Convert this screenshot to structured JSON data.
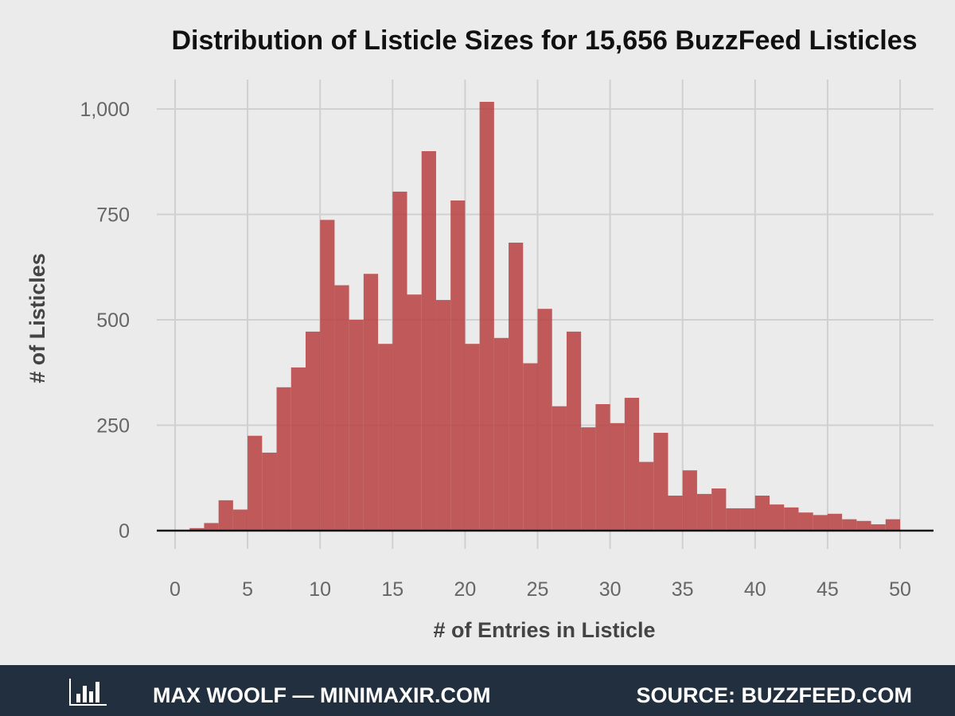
{
  "chart_data": {
    "type": "bar",
    "title": "Distribution of Listicle Sizes for 15,656 BuzzFeed Listicles",
    "xlabel": "# of Entries in Listicle",
    "ylabel": "# of Listicles",
    "bin_width": 1,
    "bin_starts": [
      0,
      1,
      2,
      3,
      4,
      5,
      6,
      7,
      8,
      9,
      10,
      11,
      12,
      13,
      14,
      15,
      16,
      17,
      18,
      19,
      20,
      21,
      22,
      23,
      24,
      25,
      26,
      27,
      28,
      29,
      30,
      31,
      32,
      33,
      34,
      35,
      36,
      37,
      38,
      39,
      40,
      41,
      42,
      43,
      44,
      45,
      46,
      47,
      48,
      49
    ],
    "values": [
      0,
      6,
      18,
      72,
      50,
      225,
      185,
      340,
      387,
      472,
      737,
      582,
      500,
      609,
      443,
      804,
      560,
      900,
      547,
      783,
      443,
      1017,
      457,
      683,
      397,
      526,
      295,
      472,
      245,
      300,
      255,
      315,
      163,
      232,
      83,
      143,
      87,
      100,
      53,
      53,
      83,
      62,
      55,
      43,
      37,
      40,
      27,
      23,
      15,
      27
    ],
    "xlim": [
      -1.3,
      52.2
    ],
    "ylim": [
      0,
      1060
    ],
    "xticks": [
      "0",
      "5",
      "10",
      "15",
      "20",
      "25",
      "30",
      "35",
      "40",
      "45",
      "50"
    ],
    "xtick_values": [
      0,
      5,
      10,
      15,
      20,
      25,
      30,
      35,
      40,
      45,
      50
    ],
    "yticks": [
      "0",
      "250",
      "500",
      "750",
      "1,000"
    ],
    "ytick_values": [
      0,
      250,
      500,
      750,
      1000
    ],
    "grid": true,
    "bar_color": "#b8403f"
  },
  "footer": {
    "author": "MAX WOOLF — MINIMAXIR.COM",
    "source": "SOURCE: BUZZFEED.COM",
    "icon": "bar-chart-icon",
    "background": "#222f3f"
  }
}
